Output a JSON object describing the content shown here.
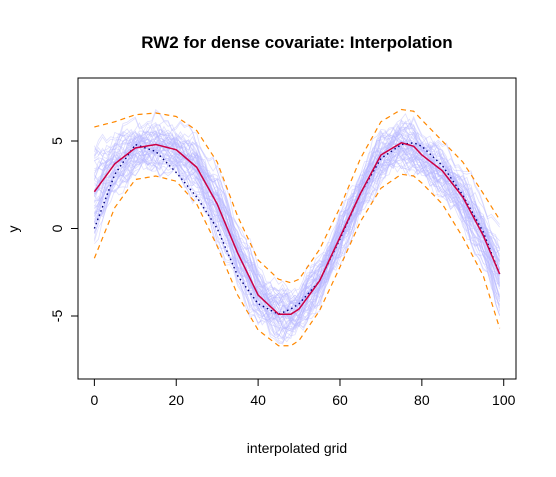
{
  "chart_data": {
    "type": "line",
    "title": "RW2 for dense covariate: Interpolation",
    "xlabel": "interpolated grid",
    "ylabel": "y",
    "xlim": [
      -4,
      103
    ],
    "ylim": [
      -8.6,
      8.6
    ],
    "xticks": [
      "0",
      "20",
      "40",
      "60",
      "80",
      "100"
    ],
    "yticks": [
      "-5",
      "0",
      "5"
    ],
    "grid": false,
    "legend": "none",
    "colors": {
      "samples": "#b8b8ff",
      "mean": "#cc0044",
      "band": "#ff8800",
      "truth": "#000080"
    },
    "sample_count": 60,
    "series": [
      {
        "role": "posterior-mean",
        "style": "solid",
        "x": [
          0,
          5,
          10,
          15,
          20,
          25,
          30,
          35,
          40,
          45,
          48,
          50,
          55,
          60,
          65,
          70,
          75,
          78,
          80,
          85,
          90,
          95,
          99
        ],
        "y": [
          2.1,
          3.7,
          4.6,
          4.8,
          4.5,
          3.5,
          1.4,
          -1.4,
          -3.8,
          -4.9,
          -4.9,
          -4.6,
          -3.0,
          -0.5,
          2.0,
          4.2,
          4.9,
          4.7,
          4.2,
          3.3,
          1.8,
          -0.4,
          -2.6
        ]
      },
      {
        "role": "upper-band",
        "style": "dashed",
        "x": [
          0,
          5,
          10,
          15,
          20,
          25,
          30,
          35,
          40,
          45,
          48,
          50,
          55,
          60,
          65,
          70,
          75,
          78,
          80,
          85,
          90,
          95,
          99
        ],
        "y": [
          5.8,
          6.1,
          6.5,
          6.6,
          6.4,
          5.6,
          3.8,
          0.7,
          -1.8,
          -2.9,
          -3.1,
          -2.9,
          -1.2,
          1.2,
          4.0,
          6.1,
          6.8,
          6.7,
          6.2,
          5.0,
          3.8,
          2.0,
          0.5
        ]
      },
      {
        "role": "lower-band",
        "style": "dashed",
        "x": [
          0,
          5,
          10,
          15,
          20,
          25,
          30,
          35,
          40,
          45,
          48,
          50,
          55,
          60,
          65,
          70,
          75,
          78,
          80,
          85,
          90,
          95,
          99
        ],
        "y": [
          -1.7,
          1.2,
          2.8,
          3.0,
          2.7,
          1.4,
          -1.0,
          -3.8,
          -5.8,
          -6.7,
          -6.7,
          -6.4,
          -4.7,
          -2.2,
          0.4,
          2.3,
          3.1,
          3.0,
          2.6,
          1.4,
          -0.5,
          -2.7,
          -5.7
        ]
      },
      {
        "role": "true-function",
        "style": "dotted",
        "x": [
          0,
          5,
          10,
          15,
          20,
          25,
          30,
          35,
          40,
          45,
          48,
          50,
          55,
          60,
          65,
          70,
          75,
          78,
          80,
          85,
          90,
          95,
          99
        ],
        "y": [
          0.0,
          3.1,
          4.8,
          4.4,
          3.2,
          1.8,
          0.0,
          -2.7,
          -4.3,
          -4.9,
          -4.6,
          -4.3,
          -3.0,
          -0.6,
          2.0,
          4.0,
          4.8,
          4.9,
          4.7,
          3.6,
          1.9,
          -0.2,
          -2.6
        ]
      }
    ]
  }
}
